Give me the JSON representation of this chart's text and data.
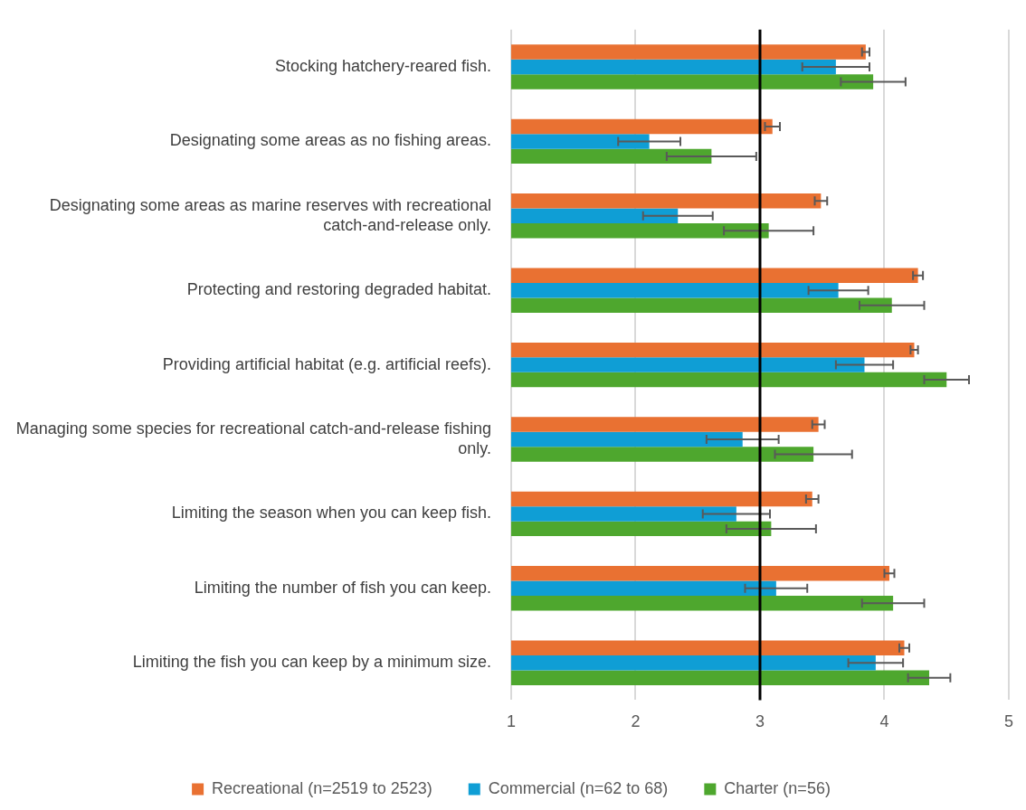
{
  "chart_data": {
    "type": "bar",
    "orientation": "horizontal",
    "categories": [
      "Stocking hatchery-reared fish.",
      "Designating some areas as no fishing areas.",
      "Designating some areas as marine reserves with recreational catch-and-release only.",
      "Protecting and restoring degraded habitat.",
      "Providing artificial habitat (e.g. artificial reefs).",
      "Managing some species for recreational catch-and-release fishing only.",
      "Limiting the season when you can keep fish.",
      "Limiting the number of fish you can keep.",
      "Limiting the fish you can keep by a minimum size."
    ],
    "series": [
      {
        "name": "Recreational (n=2519 to 2523)",
        "color": "#e97132",
        "values": [
          3.85,
          3.1,
          3.49,
          4.27,
          4.24,
          3.47,
          3.42,
          4.04,
          4.16
        ],
        "errors": [
          0.03,
          0.06,
          0.05,
          0.04,
          0.03,
          0.05,
          0.05,
          0.04,
          0.04
        ]
      },
      {
        "name": "Commercial (n=62 to 68)",
        "color": "#0f9ed5",
        "values": [
          3.61,
          2.11,
          2.34,
          3.63,
          3.84,
          2.86,
          2.81,
          3.13,
          3.93
        ],
        "errors": [
          0.27,
          0.25,
          0.28,
          0.24,
          0.23,
          0.29,
          0.27,
          0.25,
          0.22
        ]
      },
      {
        "name": "Charter (n=56)",
        "color": "#4ea72e",
        "values": [
          3.91,
          2.61,
          3.07,
          4.06,
          4.5,
          3.43,
          3.09,
          4.07,
          4.36
        ],
        "errors": [
          0.26,
          0.36,
          0.36,
          0.26,
          0.18,
          0.31,
          0.36,
          0.25,
          0.17
        ]
      }
    ],
    "xlim": [
      1,
      5
    ],
    "xticks": [
      1,
      2,
      3,
      4,
      5
    ],
    "grid": "x",
    "legend": "bottom",
    "ref_lines": [
      {
        "axis": "x",
        "value": 3,
        "color": "#000000"
      }
    ]
  }
}
